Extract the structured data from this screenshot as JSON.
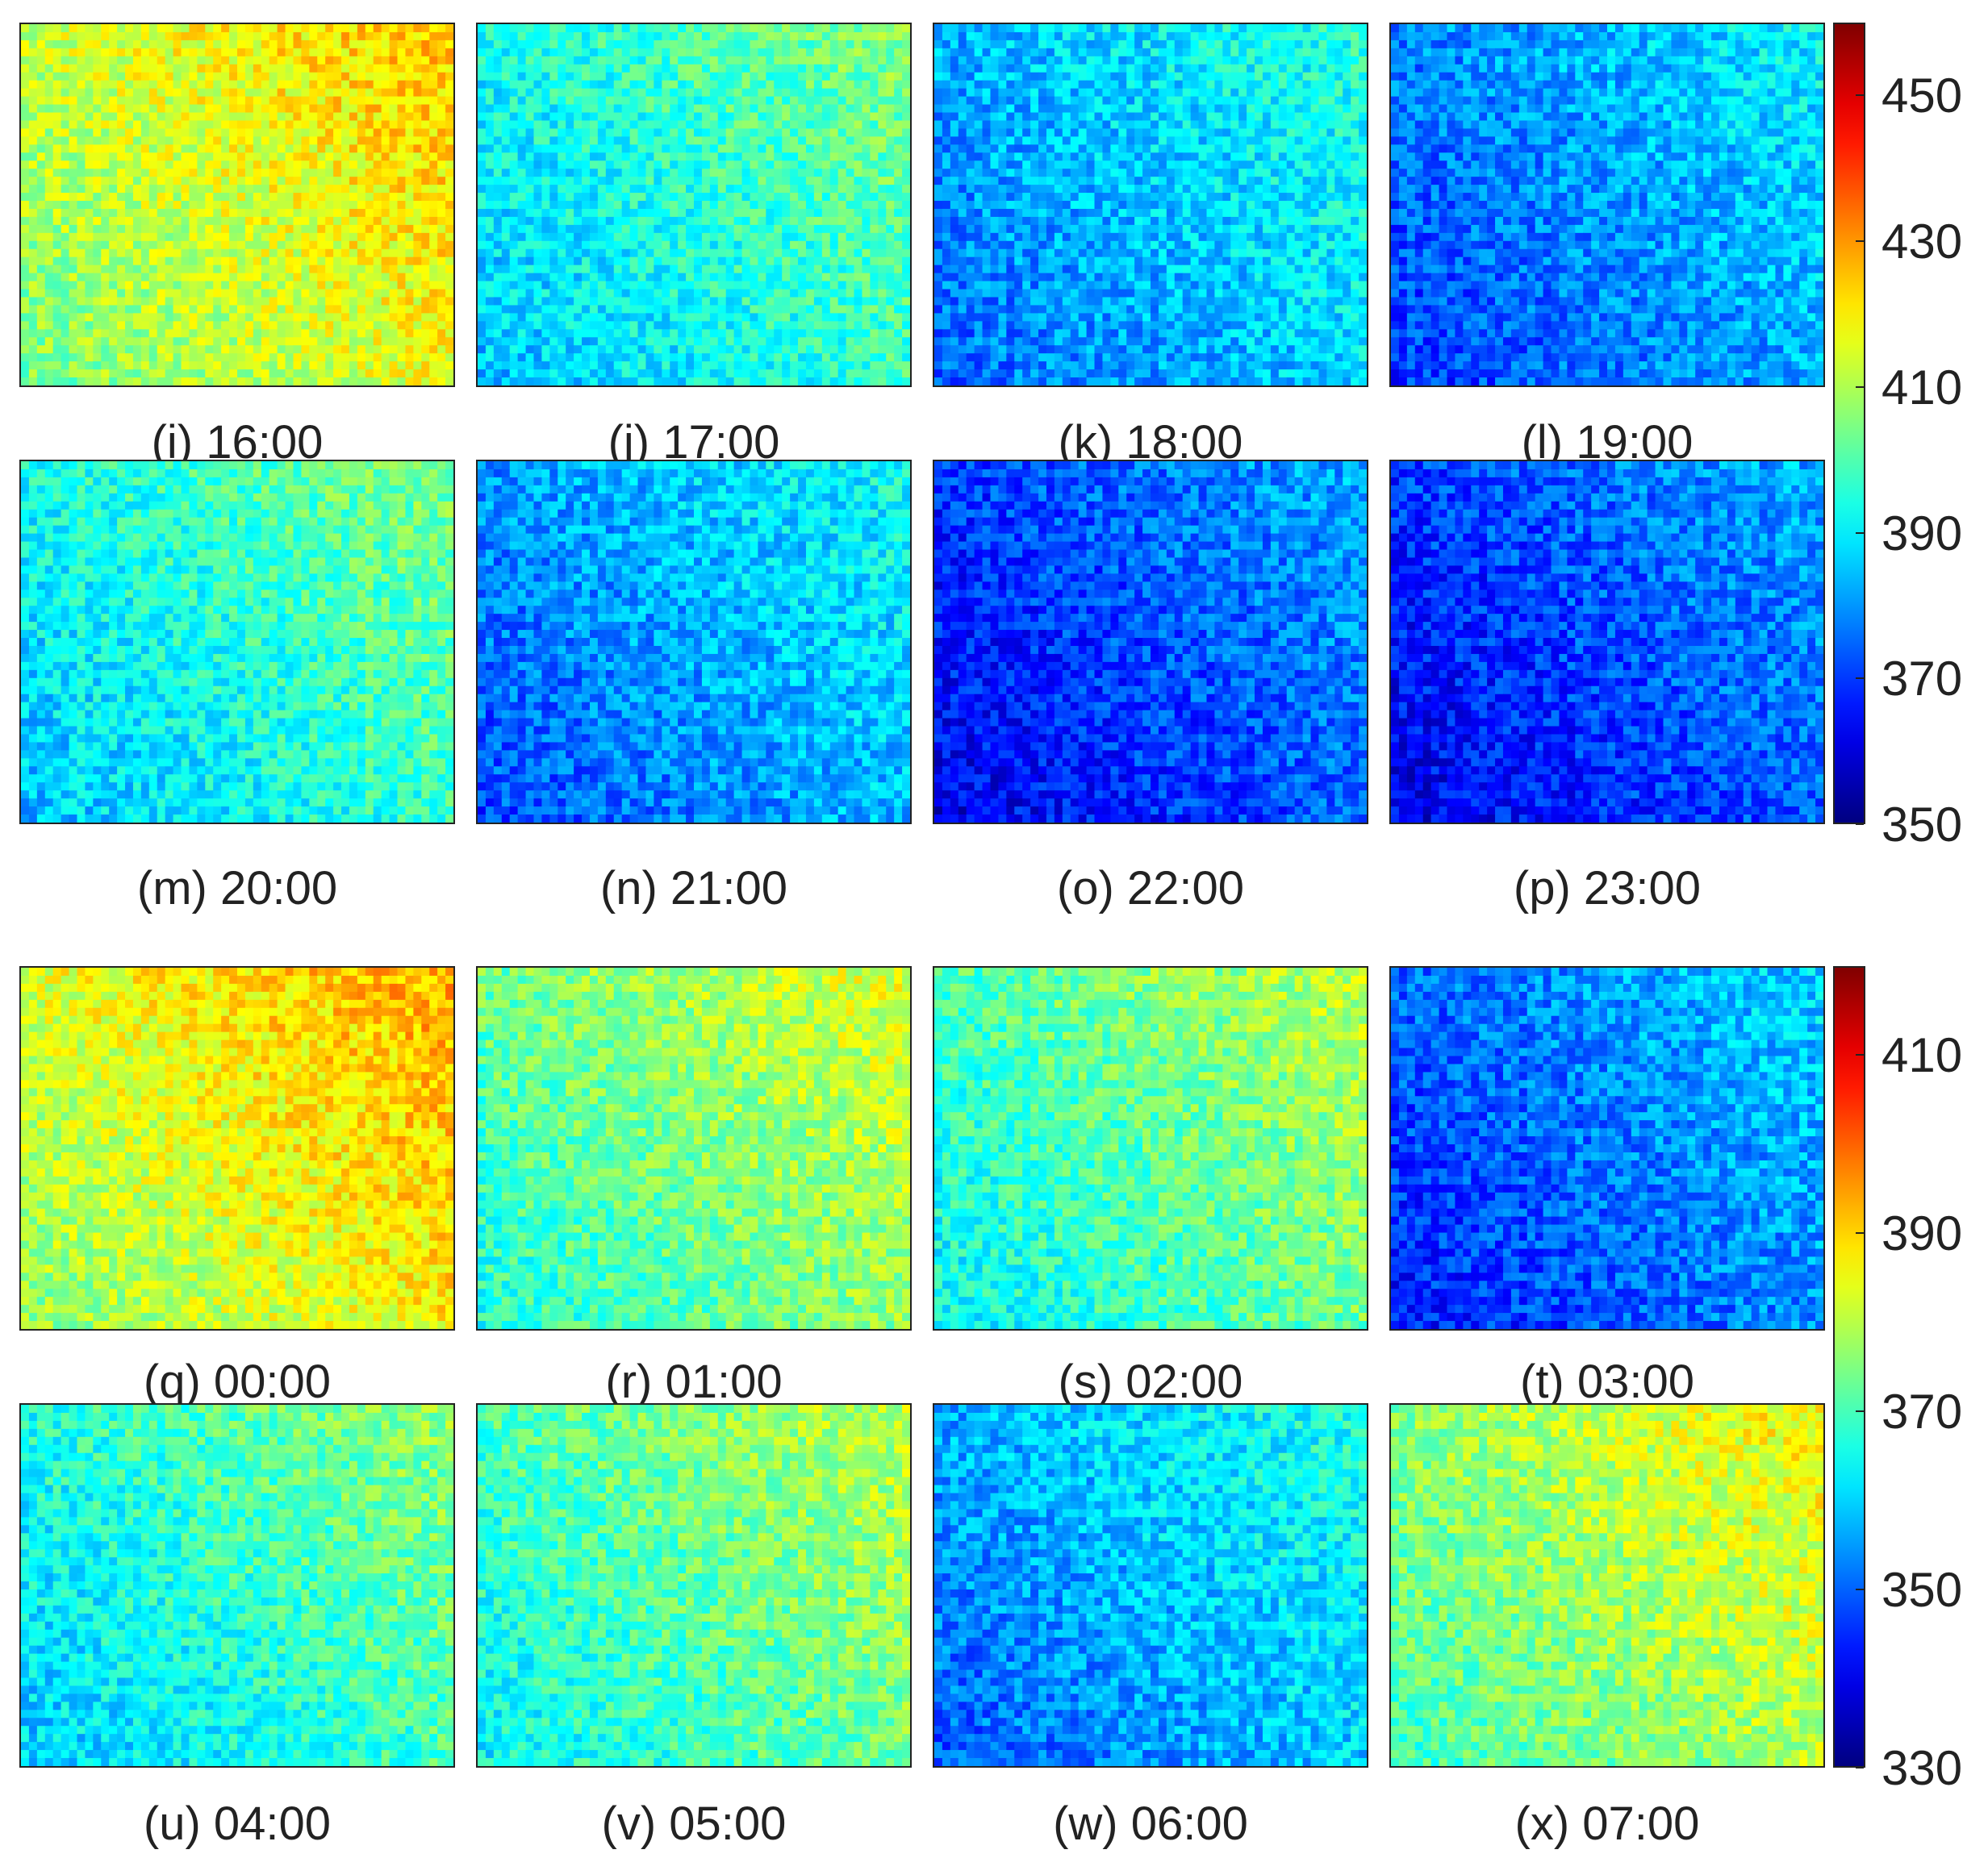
{
  "chart_data": [
    {
      "type": "heatmap",
      "title": "",
      "colormap": "jet",
      "clim": [
        350,
        460
      ],
      "colorbar_ticks": [
        "350",
        "370",
        "390",
        "410",
        "430",
        "450"
      ],
      "panels": [
        {
          "label": "(i) 16:00",
          "mean": 415
        },
        {
          "label": "(j) 17:00",
          "mean": 395
        },
        {
          "label": "(k) 18:00",
          "mean": 385
        },
        {
          "label": "(l) 19:00",
          "mean": 380
        },
        {
          "label": "(m) 20:00",
          "mean": 395
        },
        {
          "label": "(n) 21:00",
          "mean": 382
        },
        {
          "label": "(o) 22:00",
          "mean": 372
        },
        {
          "label": "(p) 23:00",
          "mean": 372
        }
      ]
    },
    {
      "type": "heatmap",
      "title": "",
      "colormap": "jet",
      "clim": [
        330,
        420
      ],
      "colorbar_ticks": [
        "330",
        "350",
        "370",
        "390",
        "410"
      ],
      "panels": [
        {
          "label": "(q) 00:00",
          "mean": 385
        },
        {
          "label": "(r) 01:00",
          "mean": 375
        },
        {
          "label": "(s) 02:00",
          "mean": 372
        },
        {
          "label": "(t) 03:00",
          "mean": 352
        },
        {
          "label": "(u) 04:00",
          "mean": 368
        },
        {
          "label": "(v) 05:00",
          "mean": 372
        },
        {
          "label": "(w) 06:00",
          "mean": 358
        },
        {
          "label": "(x) 07:00",
          "mean": 378
        }
      ]
    }
  ]
}
